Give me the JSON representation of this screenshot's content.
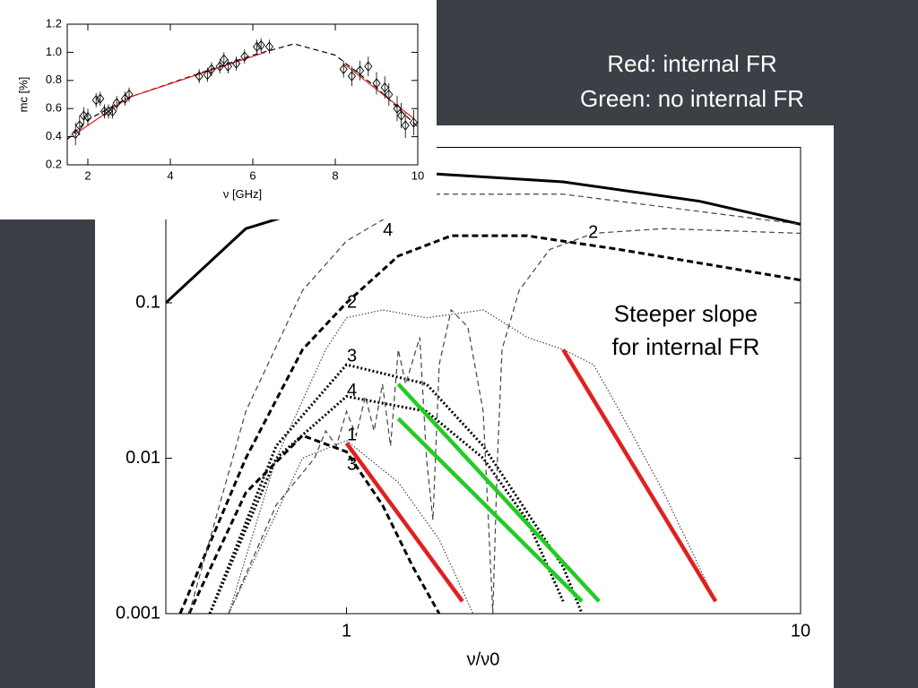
{
  "slide": {
    "notes": [
      "Red: internal FR",
      "Green: no internal FR"
    ],
    "callout": [
      "Steeper slope",
      "for internal FR"
    ]
  },
  "chart_data": [
    {
      "type": "scatter",
      "xlabel": "ν [GHz]",
      "ylabel": "mc [%]",
      "xlim": [
        1.5,
        10
      ],
      "ylim": [
        0.2,
        1.2
      ],
      "xticks": [
        2,
        4,
        6,
        8,
        10
      ],
      "yticks": [
        0.2,
        0.4,
        0.6,
        0.8,
        {
          "value": 1,
          "label": "1.0"
        },
        1.2
      ],
      "color": "#000000",
      "x": [
        1.7,
        1.8,
        1.9,
        2.0,
        2.2,
        2.3,
        2.4,
        2.5,
        2.6,
        2.7,
        2.9,
        3.0,
        4.7,
        4.9,
        5.0,
        5.2,
        5.3,
        5.4,
        5.6,
        5.8,
        6.1,
        6.2,
        6.4,
        8.2,
        8.4,
        8.6,
        8.8,
        9.0,
        9.2,
        9.3,
        9.5,
        9.6,
        9.7,
        9.9
      ],
      "values": [
        0.42,
        0.48,
        0.55,
        0.54,
        0.66,
        0.67,
        0.58,
        0.58,
        0.58,
        0.64,
        0.67,
        0.7,
        0.83,
        0.84,
        0.88,
        0.9,
        0.95,
        0.9,
        0.92,
        0.97,
        1.04,
        1.05,
        1.04,
        0.88,
        0.83,
        0.87,
        0.9,
        0.78,
        0.75,
        0.7,
        0.6,
        0.55,
        0.48,
        0.5
      ],
      "errors": [
        0.08,
        0.07,
        0.06,
        0.06,
        0.05,
        0.05,
        0.05,
        0.05,
        0.05,
        0.05,
        0.05,
        0.05,
        0.05,
        0.05,
        0.05,
        0.05,
        0.05,
        0.05,
        0.05,
        0.05,
        0.05,
        0.05,
        0.05,
        0.06,
        0.07,
        0.07,
        0.07,
        0.08,
        0.08,
        0.08,
        0.09,
        0.09,
        0.09,
        0.09
      ],
      "lines": [
        {
          "color": "#000000",
          "style": "dashed",
          "x": [
            1.5,
            2,
            3,
            4,
            5,
            6,
            7,
            8,
            9,
            10
          ],
          "values": [
            0.38,
            0.52,
            0.68,
            0.78,
            0.88,
            0.98,
            1.06,
            0.98,
            0.75,
            0.47
          ]
        },
        {
          "color": "#e02020",
          "style": "solid",
          "x": [
            1.7,
            3.0,
            6.3
          ],
          "values": [
            0.42,
            0.68,
            1.0
          ]
        },
        {
          "color": "#e02020",
          "style": "solid",
          "x": [
            8.2,
            9.9
          ],
          "values": [
            0.92,
            0.53
          ]
        }
      ]
    },
    {
      "type": "line",
      "xlabel": "ν/ν0",
      "log_x": true,
      "log_y": true,
      "xlim": [
        0.4,
        10
      ],
      "ylim": [
        0.001,
        1
      ],
      "xticks": [
        1,
        10
      ],
      "yticks": [
        0.001,
        0.01,
        0.1
      ],
      "series": [
        {
          "color": "#000000",
          "style": "solid-thick",
          "x": [
            0.4,
            0.6,
            1.5,
            3,
            6,
            10
          ],
          "values": [
            0.1,
            0.3,
            0.68,
            0.6,
            0.45,
            0.32
          ]
        },
        {
          "color": "#000000",
          "style": "dashed-thick",
          "x": [
            0.43,
            0.6,
            0.8,
            1,
            1.3,
            1.7,
            2.5,
            4,
            10
          ],
          "values": [
            0.001,
            0.01,
            0.05,
            0.1,
            0.2,
            0.27,
            0.27,
            0.22,
            0.14
          ]
        },
        {
          "color": "#000000",
          "style": "dashed-thick",
          "x": [
            0.45,
            0.6,
            0.8,
            1,
            1.2,
            1.4,
            1.6
          ],
          "values": [
            0.001,
            0.006,
            0.014,
            0.011,
            0.005,
            0.002,
            0.001
          ]
        },
        {
          "color": "#000000",
          "style": "dotted-thick",
          "x": [
            0.5,
            0.7,
            1,
            1.5,
            2,
            3,
            3.3
          ],
          "values": [
            0.001,
            0.012,
            0.04,
            0.03,
            0.012,
            0.002,
            0.001
          ]
        },
        {
          "color": "#000000",
          "style": "dotted-thick",
          "x": [
            0.5,
            0.7,
            1,
            1.5,
            2,
            2.5,
            3
          ],
          "values": [
            0.001,
            0.01,
            0.025,
            0.02,
            0.01,
            0.004,
            0.0012
          ]
        },
        {
          "color": "#444444",
          "style": "dotted",
          "x": [
            0.55,
            0.8,
            1,
            1.3,
            1.6,
            1.9
          ],
          "values": [
            0.001,
            0.01,
            0.013,
            0.007,
            0.003,
            0.001
          ]
        },
        {
          "color": "#444444",
          "style": "dotted",
          "x": [
            0.55,
            0.7,
            0.9,
            1,
            1.2,
            1.5,
            2,
            2.5,
            3,
            3.5,
            4,
            5,
            6.5
          ],
          "values": [
            0.001,
            0.01,
            0.05,
            0.08,
            0.09,
            0.08,
            0.09,
            0.06,
            0.05,
            0.04,
            0.02,
            0.006,
            0.0012
          ]
        },
        {
          "color": "#444444",
          "style": "dashed",
          "x": [
            0.45,
            0.6,
            0.8,
            1,
            1.5,
            3,
            10
          ],
          "values": [
            0.001,
            0.02,
            0.12,
            0.25,
            0.5,
            0.5,
            0.32
          ]
        },
        {
          "color": "#444444",
          "style": "dashed",
          "x": [
            0.55,
            0.7,
            0.85,
            0.9,
            0.95,
            1.0,
            1.05,
            1.1,
            1.15,
            1.2,
            1.25,
            1.3,
            1.35,
            1.45,
            1.5,
            1.55,
            1.6,
            1.7,
            1.85,
            2.0,
            2.1,
            2.15,
            2.2,
            2.4,
            2.8,
            3.5,
            5,
            10
          ],
          "values": [
            0.001,
            0.005,
            0.01,
            0.015,
            0.012,
            0.02,
            0.014,
            0.025,
            0.015,
            0.03,
            0.012,
            0.05,
            0.03,
            0.06,
            0.01,
            0.004,
            0.04,
            0.09,
            0.07,
            0.02,
            0.001,
            0.01,
            0.05,
            0.12,
            0.22,
            0.28,
            0.3,
            0.28
          ]
        },
        {
          "color": "#e02020",
          "style": "solid-fit",
          "x": [
            1,
            1.8
          ],
          "values": [
            0.0125,
            0.0012
          ]
        },
        {
          "color": "#e02020",
          "style": "solid-fit",
          "x": [
            3,
            6.5
          ],
          "values": [
            0.05,
            0.0012
          ]
        },
        {
          "color": "#22cc22",
          "style": "solid-fit",
          "x": [
            1.3,
            3.6
          ],
          "values": [
            0.03,
            0.0012
          ]
        },
        {
          "color": "#22cc22",
          "style": "solid-fit",
          "x": [
            1.3,
            3.3
          ],
          "values": [
            0.018,
            0.0012
          ]
        }
      ],
      "annotations": [
        {
          "text": "4",
          "x": 1.2,
          "y": 0.29
        },
        {
          "text": "2",
          "x": 3.4,
          "y": 0.28
        },
        {
          "text": "2",
          "x": 1.0,
          "y": 0.1
        },
        {
          "text": "3",
          "x": 1.0,
          "y": 0.045
        },
        {
          "text": "4",
          "x": 1.0,
          "y": 0.027
        },
        {
          "text": "1",
          "x": 1.0,
          "y": 0.014
        },
        {
          "text": "3",
          "x": 1.0,
          "y": 0.009
        }
      ]
    }
  ]
}
